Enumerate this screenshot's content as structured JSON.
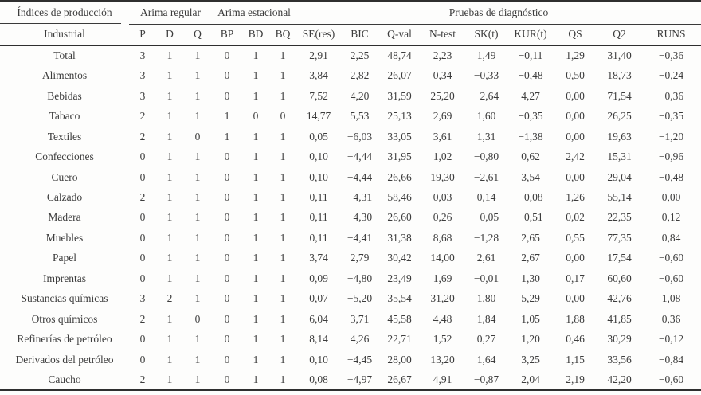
{
  "table": {
    "group_header": {
      "col1": "Índices de producción",
      "groups": [
        {
          "label": "Arima regular",
          "colspan": 3
        },
        {
          "label": "Arima estacional",
          "colspan": 3
        },
        {
          "label": "Pruebas de diagnóstico",
          "colspan": 9
        }
      ]
    },
    "columns": [
      "Industrial",
      "P",
      "D",
      "Q",
      "BP",
      "BD",
      "BQ",
      "SE(res)",
      "BIC",
      "Q-val",
      "N-test",
      "SK(t)",
      "KUR(t)",
      "QS",
      "Q2",
      "RUNS"
    ],
    "rows": [
      [
        "Total",
        "3",
        "1",
        "1",
        "0",
        "1",
        "1",
        "2,91",
        "2,25",
        "48,74",
        "2,23",
        "1,49",
        "−0,11",
        "1,29",
        "31,40",
        "−0,36"
      ],
      [
        "Alimentos",
        "3",
        "1",
        "1",
        "0",
        "1",
        "1",
        "3,84",
        "2,82",
        "26,07",
        "0,34",
        "−0,33",
        "−0,48",
        "0,50",
        "18,73",
        "−0,24"
      ],
      [
        "Bebidas",
        "3",
        "1",
        "1",
        "0",
        "1",
        "1",
        "7,52",
        "4,20",
        "31,59",
        "25,20",
        "−2,64",
        "4,27",
        "0,00",
        "71,54",
        "−0,36"
      ],
      [
        "Tabaco",
        "2",
        "1",
        "1",
        "1",
        "0",
        "0",
        "14,77",
        "5,53",
        "25,13",
        "2,69",
        "1,60",
        "−0,35",
        "0,00",
        "26,25",
        "−0,35"
      ],
      [
        "Textiles",
        "2",
        "1",
        "0",
        "1",
        "1",
        "1",
        "0,05",
        "−6,03",
        "33,05",
        "3,61",
        "1,31",
        "−1,38",
        "0,00",
        "19,63",
        "−1,20"
      ],
      [
        "Confecciones",
        "0",
        "1",
        "1",
        "0",
        "1",
        "1",
        "0,10",
        "−4,44",
        "31,95",
        "1,02",
        "−0,80",
        "0,62",
        "2,42",
        "15,31",
        "−0,96"
      ],
      [
        "Cuero",
        "0",
        "1",
        "1",
        "0",
        "1",
        "1",
        "0,10",
        "−4,44",
        "26,66",
        "19,30",
        "−2,61",
        "3,54",
        "0,00",
        "29,04",
        "−0,48"
      ],
      [
        "Calzado",
        "2",
        "1",
        "1",
        "0",
        "1",
        "1",
        "0,11",
        "−4,31",
        "58,46",
        "0,03",
        "0,14",
        "−0,08",
        "1,26",
        "55,14",
        "0,00"
      ],
      [
        "Madera",
        "0",
        "1",
        "1",
        "0",
        "1",
        "1",
        "0,11",
        "−4,30",
        "26,60",
        "0,26",
        "−0,05",
        "−0,51",
        "0,02",
        "22,35",
        "0,12"
      ],
      [
        "Muebles",
        "0",
        "1",
        "1",
        "0",
        "1",
        "1",
        "0,11",
        "−4,41",
        "31,38",
        "8,68",
        "−1,28",
        "2,65",
        "0,55",
        "77,35",
        "0,84"
      ],
      [
        "Papel",
        "0",
        "1",
        "1",
        "0",
        "1",
        "1",
        "3,74",
        "2,79",
        "30,42",
        "14,00",
        "2,61",
        "2,67",
        "0,00",
        "17,54",
        "−0,60"
      ],
      [
        "Imprentas",
        "0",
        "1",
        "1",
        "0",
        "1",
        "1",
        "0,09",
        "−4,80",
        "23,49",
        "1,69",
        "−0,01",
        "1,30",
        "0,17",
        "60,60",
        "−0,60"
      ],
      [
        "Sustancias químicas",
        "3",
        "2",
        "1",
        "0",
        "1",
        "1",
        "0,07",
        "−5,20",
        "35,54",
        "31,20",
        "1,80",
        "5,29",
        "0,00",
        "42,76",
        "1,08"
      ],
      [
        "Otros químicos",
        "2",
        "1",
        "0",
        "0",
        "1",
        "1",
        "6,04",
        "3,71",
        "45,58",
        "4,48",
        "1,84",
        "1,05",
        "1,88",
        "41,85",
        "0,36"
      ],
      [
        "Refinerías de petróleo",
        "0",
        "1",
        "1",
        "0",
        "1",
        "1",
        "8,14",
        "4,26",
        "22,71",
        "1,52",
        "0,27",
        "1,20",
        "0,46",
        "30,29",
        "−0,12"
      ],
      [
        "Derivados del petróleo",
        "0",
        "1",
        "1",
        "0",
        "1",
        "1",
        "0,10",
        "−4,45",
        "28,00",
        "13,20",
        "1,64",
        "3,25",
        "1,15",
        "33,56",
        "−0,84"
      ],
      [
        "Caucho",
        "2",
        "1",
        "1",
        "0",
        "1",
        "1",
        "0,08",
        "−4,97",
        "26,67",
        "4,91",
        "−0,87",
        "2,04",
        "2,19",
        "42,20",
        "−0,60"
      ]
    ]
  }
}
